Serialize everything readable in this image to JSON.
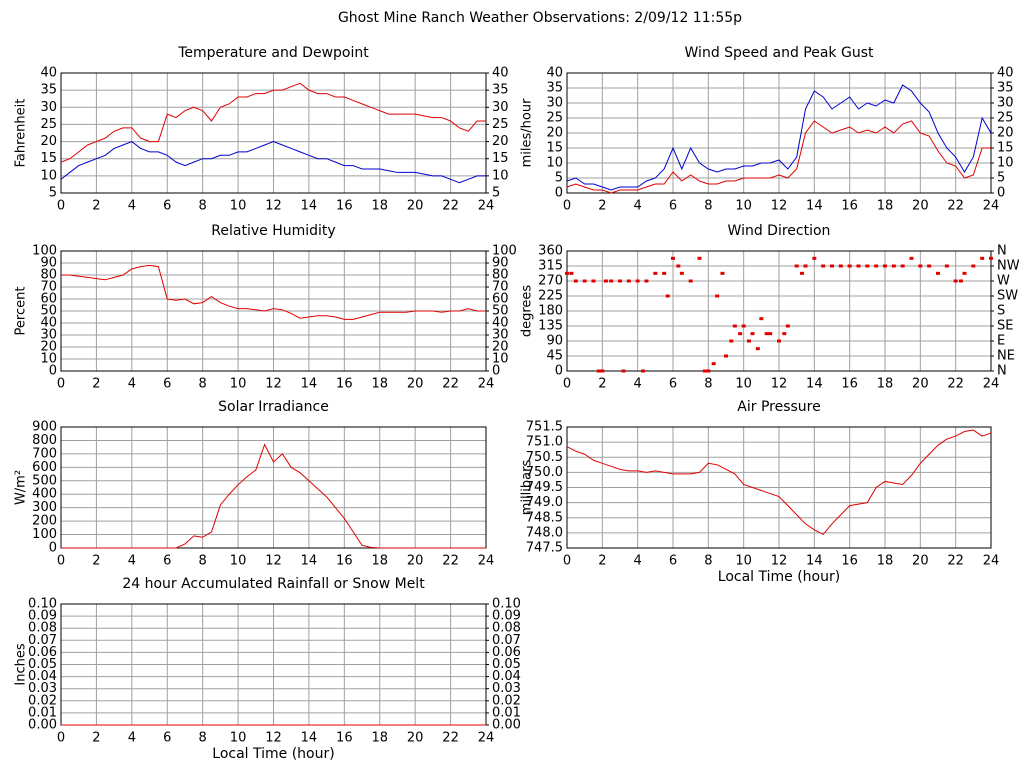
{
  "title": "Ghost Mine Ranch Weather Observations: 2/09/12 11:55p",
  "chart_data": [
    {
      "type": "line",
      "title": "Temperature and Dewpoint",
      "ylabel": "Fahrenheit",
      "x": [
        0,
        0.5,
        1,
        1.5,
        2,
        2.5,
        3,
        3.5,
        4,
        4.5,
        5,
        5.5,
        6,
        6.5,
        7,
        7.5,
        8,
        8.5,
        9,
        9.5,
        10,
        10.5,
        11,
        11.5,
        12,
        12.5,
        13,
        13.5,
        14,
        14.5,
        15,
        15.5,
        16,
        16.5,
        17,
        17.5,
        18,
        18.5,
        19,
        19.5,
        20,
        20.5,
        21,
        21.5,
        22,
        22.5,
        23,
        23.5,
        24
      ],
      "series": [
        {
          "color": "#e00000",
          "values": [
            14,
            15,
            17,
            19,
            20,
            21,
            23,
            24,
            24,
            21,
            20,
            20,
            28,
            27,
            29,
            30,
            29,
            26,
            30,
            31,
            33,
            33,
            34,
            34,
            35,
            35,
            36,
            37,
            35,
            34,
            34,
            33,
            33,
            32,
            31,
            30,
            29,
            28,
            28,
            28,
            28,
            27.5,
            27,
            27,
            26,
            24,
            23,
            26,
            26
          ]
        },
        {
          "color": "#0000d0",
          "values": [
            9,
            11,
            13,
            14,
            15,
            16,
            18,
            19,
            20,
            18,
            17,
            17,
            16,
            14,
            13,
            14,
            15,
            15,
            16,
            16,
            17,
            17,
            18,
            19,
            20,
            19,
            18,
            17,
            16,
            15,
            15,
            14,
            13,
            13,
            12,
            12,
            12,
            11.5,
            11,
            11,
            11,
            10.5,
            10,
            10,
            9,
            8,
            9,
            10,
            10
          ]
        }
      ],
      "xlim": [
        0,
        24
      ],
      "xticks": [
        0,
        2,
        4,
        6,
        8,
        10,
        12,
        14,
        16,
        18,
        20,
        22,
        24
      ],
      "ylim": [
        5,
        40
      ],
      "yticks": [
        5,
        10,
        15,
        20,
        25,
        30,
        35,
        40
      ],
      "y2lim": [
        5,
        40
      ],
      "y2ticks": [
        5,
        10,
        15,
        20,
        25,
        30,
        35,
        40
      ],
      "grid": true
    },
    {
      "type": "line",
      "title": "Wind Speed and Peak Gust",
      "ylabel": "miles/hour",
      "x": [
        0,
        0.5,
        1,
        1.5,
        2,
        2.5,
        3,
        3.5,
        4,
        4.5,
        5,
        5.5,
        6,
        6.5,
        7,
        7.5,
        8,
        8.5,
        9,
        9.5,
        10,
        10.5,
        11,
        11.5,
        12,
        12.5,
        13,
        13.5,
        14,
        14.5,
        15,
        15.5,
        16,
        16.5,
        17,
        17.5,
        18,
        18.5,
        19,
        19.5,
        20,
        20.5,
        21,
        21.5,
        22,
        22.5,
        23,
        23.5,
        24
      ],
      "series": [
        {
          "color": "#e00000",
          "values": [
            2,
            3,
            2,
            1,
            1,
            0,
            1,
            1,
            1,
            2,
            3,
            3,
            7,
            4,
            6,
            4,
            3,
            3,
            4,
            4,
            5,
            5,
            5,
            5,
            6,
            5,
            8,
            20,
            24,
            22,
            20,
            21,
            22,
            20,
            21,
            20,
            22,
            20,
            23,
            24,
            20,
            19,
            14,
            10,
            9,
            5,
            6,
            15,
            15
          ]
        },
        {
          "color": "#0000d0",
          "values": [
            4,
            5,
            3,
            3,
            2,
            1,
            2,
            2,
            2,
            4,
            5,
            8,
            15,
            8,
            15,
            10,
            8,
            7,
            8,
            8,
            9,
            9,
            10,
            10,
            11,
            8,
            12,
            28,
            34,
            32,
            28,
            30,
            32,
            28,
            30,
            29,
            31,
            30,
            36,
            34,
            30,
            27,
            20,
            15,
            12,
            7,
            12,
            25,
            20
          ]
        }
      ],
      "xlim": [
        0,
        24
      ],
      "xticks": [
        0,
        2,
        4,
        6,
        8,
        10,
        12,
        14,
        16,
        18,
        20,
        22,
        24
      ],
      "ylim": [
        0,
        40
      ],
      "yticks": [
        0,
        5,
        10,
        15,
        20,
        25,
        30,
        35,
        40
      ],
      "y2lim": [
        0,
        40
      ],
      "y2ticks": [
        0,
        5,
        10,
        15,
        20,
        25,
        30,
        35,
        40
      ],
      "grid": true
    },
    {
      "type": "line",
      "title": "Relative Humidity",
      "ylabel": "Percent",
      "x": [
        0,
        0.5,
        1,
        1.5,
        2,
        2.5,
        3,
        3.5,
        4,
        4.5,
        5,
        5.5,
        6,
        6.5,
        7,
        7.5,
        8,
        8.5,
        9,
        9.5,
        10,
        10.5,
        11,
        11.5,
        12,
        12.5,
        13,
        13.5,
        14,
        14.5,
        15,
        15.5,
        16,
        16.5,
        17,
        17.5,
        18,
        18.5,
        19,
        19.5,
        20,
        20.5,
        21,
        21.5,
        22,
        22.5,
        23,
        23.5,
        24
      ],
      "series": [
        {
          "color": "#e00000",
          "values": [
            80,
            80,
            79,
            78,
            77,
            76,
            78,
            80,
            85,
            87,
            88,
            87,
            60,
            59,
            60,
            56,
            57,
            62,
            57,
            54,
            52,
            52,
            51,
            50,
            52,
            51,
            48,
            44,
            45,
            46,
            46,
            45,
            43,
            43,
            45,
            47,
            49,
            49,
            49,
            49,
            50,
            50,
            50,
            49,
            50,
            50,
            52,
            50,
            50
          ]
        }
      ],
      "xlim": [
        0,
        24
      ],
      "xticks": [
        0,
        2,
        4,
        6,
        8,
        10,
        12,
        14,
        16,
        18,
        20,
        22,
        24
      ],
      "ylim": [
        0,
        100
      ],
      "yticks": [
        0,
        10,
        20,
        30,
        40,
        50,
        60,
        70,
        80,
        90,
        100
      ],
      "y2lim": [
        0,
        100
      ],
      "y2ticks": [
        0,
        10,
        20,
        30,
        40,
        50,
        60,
        70,
        80,
        90,
        100
      ],
      "grid": true
    },
    {
      "type": "scatter",
      "title": "Wind Direction",
      "ylabel": "degrees",
      "x": [
        0,
        0.25,
        0.5,
        1,
        1.5,
        1.8,
        2,
        2.2,
        2.5,
        3,
        3.2,
        3.5,
        4,
        4.3,
        4.5,
        5,
        5.5,
        5.7,
        6,
        6.3,
        6.5,
        7,
        7.5,
        7.8,
        8,
        8.3,
        8.5,
        8.8,
        9,
        9.3,
        9.5,
        9.8,
        10,
        10.3,
        10.5,
        10.8,
        11,
        11.3,
        11.5,
        12,
        12.3,
        12.5,
        13,
        13.3,
        13.5,
        14,
        14.5,
        15,
        15.5,
        16,
        16.5,
        17,
        17.5,
        18,
        18.5,
        19,
        19.5,
        20,
        20.5,
        21,
        21.5,
        22,
        22.3,
        22.5,
        23,
        23.5,
        24
      ],
      "series": [
        {
          "color": "#e00000",
          "values": [
            293,
            293,
            270,
            270,
            270,
            0,
            0,
            270,
            270,
            270,
            0,
            270,
            270,
            0,
            270,
            293,
            293,
            225,
            338,
            315,
            293,
            270,
            338,
            0,
            0,
            22,
            225,
            293,
            45,
            90,
            135,
            112,
            135,
            90,
            112,
            67,
            157,
            112,
            112,
            90,
            112,
            135,
            315,
            293,
            315,
            338,
            315,
            315,
            315,
            315,
            315,
            315,
            315,
            315,
            315,
            315,
            338,
            315,
            315,
            293,
            315,
            270,
            270,
            293,
            315,
            338,
            338
          ]
        }
      ],
      "xlim": [
        0,
        24
      ],
      "xticks": [
        0,
        2,
        4,
        6,
        8,
        10,
        12,
        14,
        16,
        18,
        20,
        22,
        24
      ],
      "ylim": [
        0,
        360
      ],
      "yticks": [
        0,
        45,
        90,
        135,
        180,
        225,
        270,
        315,
        360
      ],
      "y2lim": [
        0,
        360
      ],
      "y2ticks": [
        {
          "value": 0,
          "label": "N"
        },
        {
          "value": 45,
          "label": "NE"
        },
        {
          "value": 90,
          "label": "E"
        },
        {
          "value": 135,
          "label": "SE"
        },
        {
          "value": 180,
          "label": "S"
        },
        {
          "value": 225,
          "label": "SW"
        },
        {
          "value": 270,
          "label": "W"
        },
        {
          "value": 315,
          "label": "NW"
        },
        {
          "value": 360,
          "label": "N"
        }
      ],
      "grid": true
    },
    {
      "type": "line",
      "title": "Solar Irradiance",
      "ylabel": "W/m²",
      "x": [
        0,
        0.5,
        1,
        1.5,
        2,
        2.5,
        3,
        3.5,
        4,
        4.5,
        5,
        5.5,
        6,
        6.5,
        7,
        7.5,
        8,
        8.5,
        9,
        9.5,
        10,
        10.5,
        11,
        11.5,
        12,
        12.5,
        13,
        13.5,
        14,
        14.5,
        15,
        15.5,
        16,
        16.5,
        17,
        17.5,
        18,
        18.5,
        19,
        19.5,
        20,
        20.5,
        21,
        21.5,
        22,
        22.5,
        23,
        23.5,
        24
      ],
      "series": [
        {
          "color": "#e00000",
          "values": [
            0,
            0,
            0,
            0,
            0,
            0,
            0,
            0,
            0,
            0,
            0,
            0,
            0,
            0,
            30,
            90,
            80,
            120,
            320,
            400,
            470,
            530,
            580,
            770,
            640,
            700,
            600,
            560,
            500,
            440,
            380,
            300,
            220,
            120,
            20,
            5,
            0,
            0,
            0,
            0,
            0,
            0,
            0,
            0,
            0,
            0,
            0,
            0,
            0
          ]
        }
      ],
      "xlim": [
        0,
        24
      ],
      "xticks": [
        0,
        2,
        4,
        6,
        8,
        10,
        12,
        14,
        16,
        18,
        20,
        22,
        24
      ],
      "ylim": [
        0,
        900
      ],
      "yticks": [
        0,
        100,
        200,
        300,
        400,
        500,
        600,
        700,
        800,
        900
      ],
      "grid": true
    },
    {
      "type": "line",
      "title": "Air Pressure",
      "ylabel": "millibars",
      "xlabel": "Local Time (hour)",
      "x": [
        0,
        0.5,
        1,
        1.5,
        2,
        2.5,
        3,
        3.5,
        4,
        4.5,
        5,
        5.5,
        6,
        6.5,
        7,
        7.5,
        8,
        8.5,
        9,
        9.5,
        10,
        10.5,
        11,
        11.5,
        12,
        12.5,
        13,
        13.5,
        14,
        14.5,
        15,
        15.5,
        16,
        16.5,
        17,
        17.5,
        18,
        18.5,
        19,
        19.5,
        20,
        20.5,
        21,
        21.5,
        22,
        22.5,
        23,
        23.5,
        24
      ],
      "series": [
        {
          "color": "#e00000",
          "values": [
            750.85,
            750.7,
            750.6,
            750.4,
            750.3,
            750.2,
            750.1,
            750.05,
            750.05,
            750.0,
            750.05,
            750.0,
            749.95,
            749.95,
            749.95,
            750.0,
            750.3,
            750.25,
            750.1,
            749.95,
            749.6,
            749.5,
            749.4,
            749.3,
            749.2,
            748.9,
            748.6,
            748.3,
            748.1,
            747.95,
            748.3,
            748.6,
            748.9,
            748.95,
            749.0,
            749.5,
            749.7,
            749.65,
            749.6,
            749.9,
            750.3,
            750.6,
            750.9,
            751.1,
            751.2,
            751.35,
            751.4,
            751.2,
            751.3
          ]
        }
      ],
      "xlim": [
        0,
        24
      ],
      "xticks": [
        0,
        2,
        4,
        6,
        8,
        10,
        12,
        14,
        16,
        18,
        20,
        22,
        24
      ],
      "ylim": [
        747.5,
        751.5
      ],
      "yticks": [
        747.5,
        {
          "value": 748,
          "label": "748.0"
        },
        748.5,
        {
          "value": 749,
          "label": "749.0"
        },
        749.5,
        {
          "value": 750,
          "label": "750.0"
        },
        750.5,
        {
          "value": 751,
          "label": "751.0"
        },
        751.5
      ],
      "grid": true
    },
    {
      "type": "line",
      "title": "24 hour Accumulated Rainfall or Snow Melt",
      "ylabel": "Inches",
      "xlabel": "Local Time (hour)",
      "x": [
        0,
        2,
        4,
        6,
        8,
        10,
        12,
        14,
        16,
        18,
        20,
        22,
        24
      ],
      "series": [
        {
          "color": "#e00000",
          "values": [
            0,
            0,
            0,
            0,
            0,
            0,
            0,
            0,
            0,
            0,
            0,
            0,
            0
          ]
        }
      ],
      "xlim": [
        0,
        24
      ],
      "xticks": [
        0,
        2,
        4,
        6,
        8,
        10,
        12,
        14,
        16,
        18,
        20,
        22,
        24
      ],
      "ylim": [
        0,
        0.1
      ],
      "yticks": [
        {
          "value": 0,
          "label": "0.00"
        },
        0.01,
        0.02,
        0.03,
        0.04,
        0.05,
        0.06,
        0.07,
        0.08,
        0.09,
        {
          "value": 0.1,
          "label": "0.10"
        }
      ],
      "y2lim": [
        0,
        0.1
      ],
      "y2ticks": [
        {
          "value": 0,
          "label": "0.00"
        },
        0.01,
        0.02,
        0.03,
        0.04,
        0.05,
        0.06,
        0.07,
        0.08,
        0.09,
        {
          "value": 0.1,
          "label": "0.10"
        }
      ],
      "grid": true
    }
  ]
}
